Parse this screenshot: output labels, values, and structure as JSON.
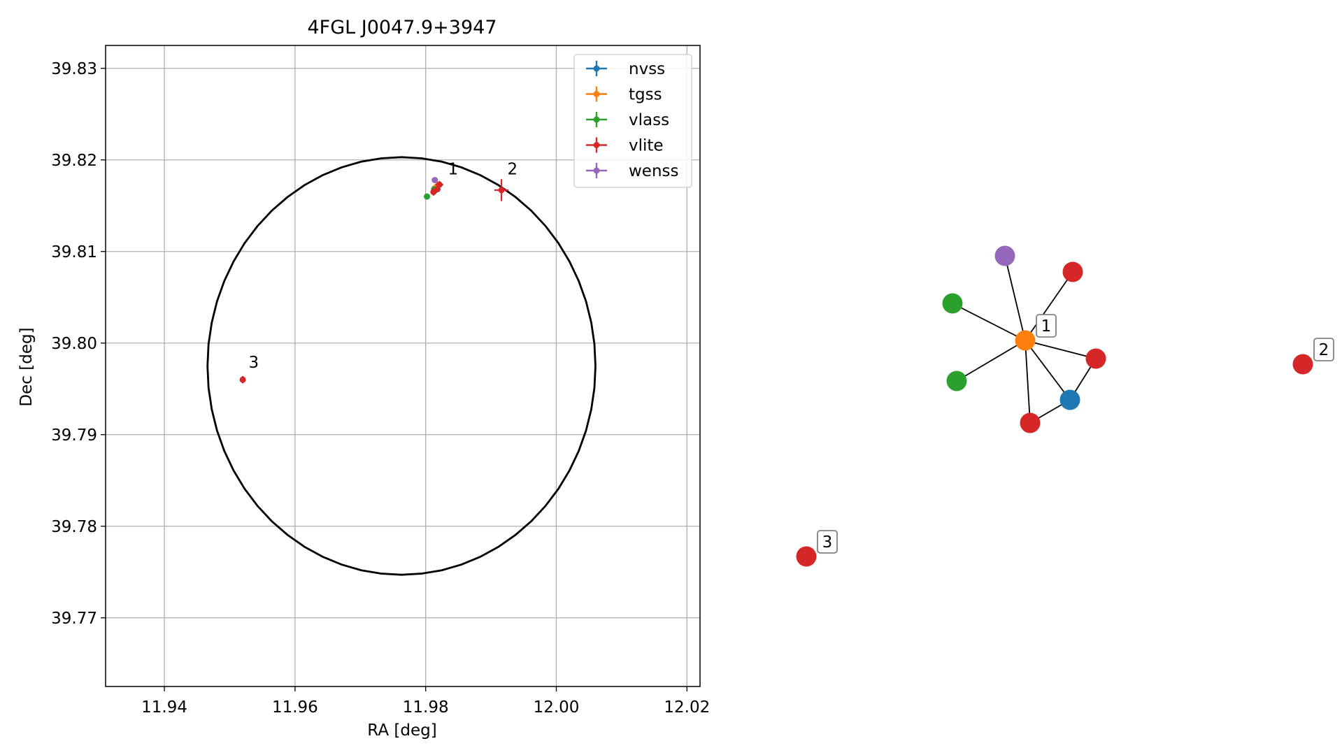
{
  "chart_data": [
    {
      "type": "scatter",
      "title": "4FGL J0047.9+3947",
      "xlabel": "RA [deg]",
      "ylabel": "Dec [deg]",
      "xlim": [
        11.931,
        12.022
      ],
      "ylim": [
        39.7625,
        39.8325
      ],
      "xticks": [
        11.94,
        11.96,
        11.98,
        12.0,
        12.02
      ],
      "xtick_labels": [
        "11.94",
        "11.96",
        "11.98",
        "12.00",
        "12.02"
      ],
      "yticks": [
        39.77,
        39.78,
        39.79,
        39.8,
        39.81,
        39.82,
        39.83
      ],
      "ytick_labels": [
        "39.77",
        "39.78",
        "39.79",
        "39.80",
        "39.81",
        "39.82",
        "39.83"
      ],
      "grid": true,
      "legend_position": "top-right",
      "ellipse": {
        "center": [
          11.9763,
          39.7975
        ],
        "semi_axis_ra": 0.0297,
        "semi_axis_dec": 0.0228,
        "color": "#000000"
      },
      "series": [
        {
          "name": "nvss",
          "color": "#1f77b4",
          "points": [
            {
              "x": 11.9815,
              "y": 39.8167,
              "xerr": 0.0005,
              "yerr": 0.0004
            }
          ]
        },
        {
          "name": "tgss",
          "color": "#ff7f0e",
          "points": [
            {
              "x": 11.9817,
              "y": 39.8171,
              "xerr": 0.0007,
              "yerr": 0.0005
            }
          ]
        },
        {
          "name": "vlass",
          "color": "#2ca02c",
          "points": [
            {
              "x": 11.9802,
              "y": 39.816,
              "xerr": 0.0002,
              "yerr": 0.0002
            },
            {
              "x": 11.9813,
              "y": 39.8168,
              "xerr": 0.0002,
              "yerr": 0.0002
            }
          ]
        },
        {
          "name": "vlite",
          "color": "#d62728",
          "points": [
            {
              "x": 11.9821,
              "y": 39.8173,
              "xerr": 0.0006,
              "yerr": 0.0004
            },
            {
              "x": 11.9812,
              "y": 39.8165,
              "xerr": 0.0004,
              "yerr": 0.0004
            },
            {
              "x": 11.9818,
              "y": 39.8168,
              "xerr": 0.0004,
              "yerr": 0.0003
            },
            {
              "x": 11.9916,
              "y": 39.8167,
              "xerr": 0.0011,
              "yerr": 0.0012
            },
            {
              "x": 11.952,
              "y": 39.796,
              "xerr": 0.0003,
              "yerr": 0.0004
            }
          ]
        },
        {
          "name": "wenss",
          "color": "#9467bd",
          "points": [
            {
              "x": 11.9814,
              "y": 39.8178,
              "xerr": 0.0003,
              "yerr": 0.0003
            }
          ]
        }
      ],
      "annotations": [
        {
          "text": "1",
          "x": 11.9834,
          "y": 39.8184
        },
        {
          "text": "2",
          "x": 11.9925,
          "y": 39.8184
        },
        {
          "text": "3",
          "x": 11.9529,
          "y": 39.7973
        }
      ]
    },
    {
      "type": "network",
      "nodes": [
        {
          "id": "tgss-1",
          "color": "#ff7f0e"
        },
        {
          "id": "wenss-1",
          "color": "#9467bd"
        },
        {
          "id": "vlite-a",
          "color": "#d62728"
        },
        {
          "id": "vlass-a",
          "color": "#2ca02c"
        },
        {
          "id": "vlass-b",
          "color": "#2ca02c"
        },
        {
          "id": "vlite-b",
          "color": "#d62728"
        },
        {
          "id": "nvss-1",
          "color": "#1f77b4"
        },
        {
          "id": "vlite-c",
          "color": "#d62728"
        },
        {
          "id": "vlite-2",
          "color": "#d62728"
        },
        {
          "id": "vlite-3",
          "color": "#d62728"
        }
      ],
      "edges": [
        [
          "tgss-1",
          "wenss-1"
        ],
        [
          "tgss-1",
          "vlite-a"
        ],
        [
          "tgss-1",
          "vlass-a"
        ],
        [
          "tgss-1",
          "vlass-b"
        ],
        [
          "tgss-1",
          "vlite-b"
        ],
        [
          "tgss-1",
          "nvss-1"
        ],
        [
          "tgss-1",
          "vlite-c"
        ],
        [
          "nvss-1",
          "vlite-b"
        ],
        [
          "nvss-1",
          "vlite-c"
        ]
      ],
      "labels": [
        {
          "text": "1",
          "node": "tgss-1"
        },
        {
          "text": "2",
          "node": "vlite-2"
        },
        {
          "text": "3",
          "node": "vlite-3"
        }
      ]
    }
  ]
}
